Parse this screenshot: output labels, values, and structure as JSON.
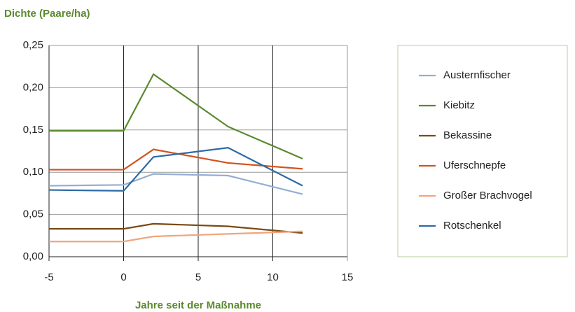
{
  "chart_data": {
    "type": "line",
    "y_label": "Dichte (Paare/ha)",
    "x_label": "Jahre seit der Maßnahme",
    "x": [
      -5,
      0,
      2,
      7,
      12
    ],
    "series": [
      {
        "name": "Austernfischer",
        "color": "#94aed4",
        "values": [
          0.084,
          0.085,
          0.098,
          0.096,
          0.074
        ]
      },
      {
        "name": "Kiebitz",
        "color": "#5a8a2e",
        "values": [
          0.149,
          0.149,
          0.216,
          0.154,
          0.116
        ]
      },
      {
        "name": "Bekassine",
        "color": "#7a4a13",
        "values": [
          0.033,
          0.033,
          0.039,
          0.036,
          0.028
        ]
      },
      {
        "name": "Uferschnepfe",
        "color": "#d4521c",
        "values": [
          0.103,
          0.103,
          0.127,
          0.111,
          0.104
        ]
      },
      {
        "name": "Großer Brachvogel",
        "color": "#f0a57c",
        "values": [
          0.018,
          0.018,
          0.024,
          0.027,
          0.03
        ]
      },
      {
        "name": "Rotschenkel",
        "color": "#2c6aa6",
        "values": [
          0.079,
          0.078,
          0.118,
          0.129,
          0.084
        ]
      }
    ],
    "xlim": [
      -5,
      15
    ],
    "xticks": [
      -5,
      0,
      5,
      10,
      15
    ],
    "ylim": [
      0,
      0.25
    ],
    "yticks": [
      {
        "value": 0,
        "label": "0,00"
      },
      {
        "value": 0.05,
        "label": "0,05"
      },
      {
        "value": 0.1,
        "label": "0,10"
      },
      {
        "value": 0.15,
        "label": "0,15"
      },
      {
        "value": 0.2,
        "label": "0,20"
      },
      {
        "value": 0.25,
        "label": "0,25"
      }
    ],
    "grid": true,
    "legend": "right"
  }
}
